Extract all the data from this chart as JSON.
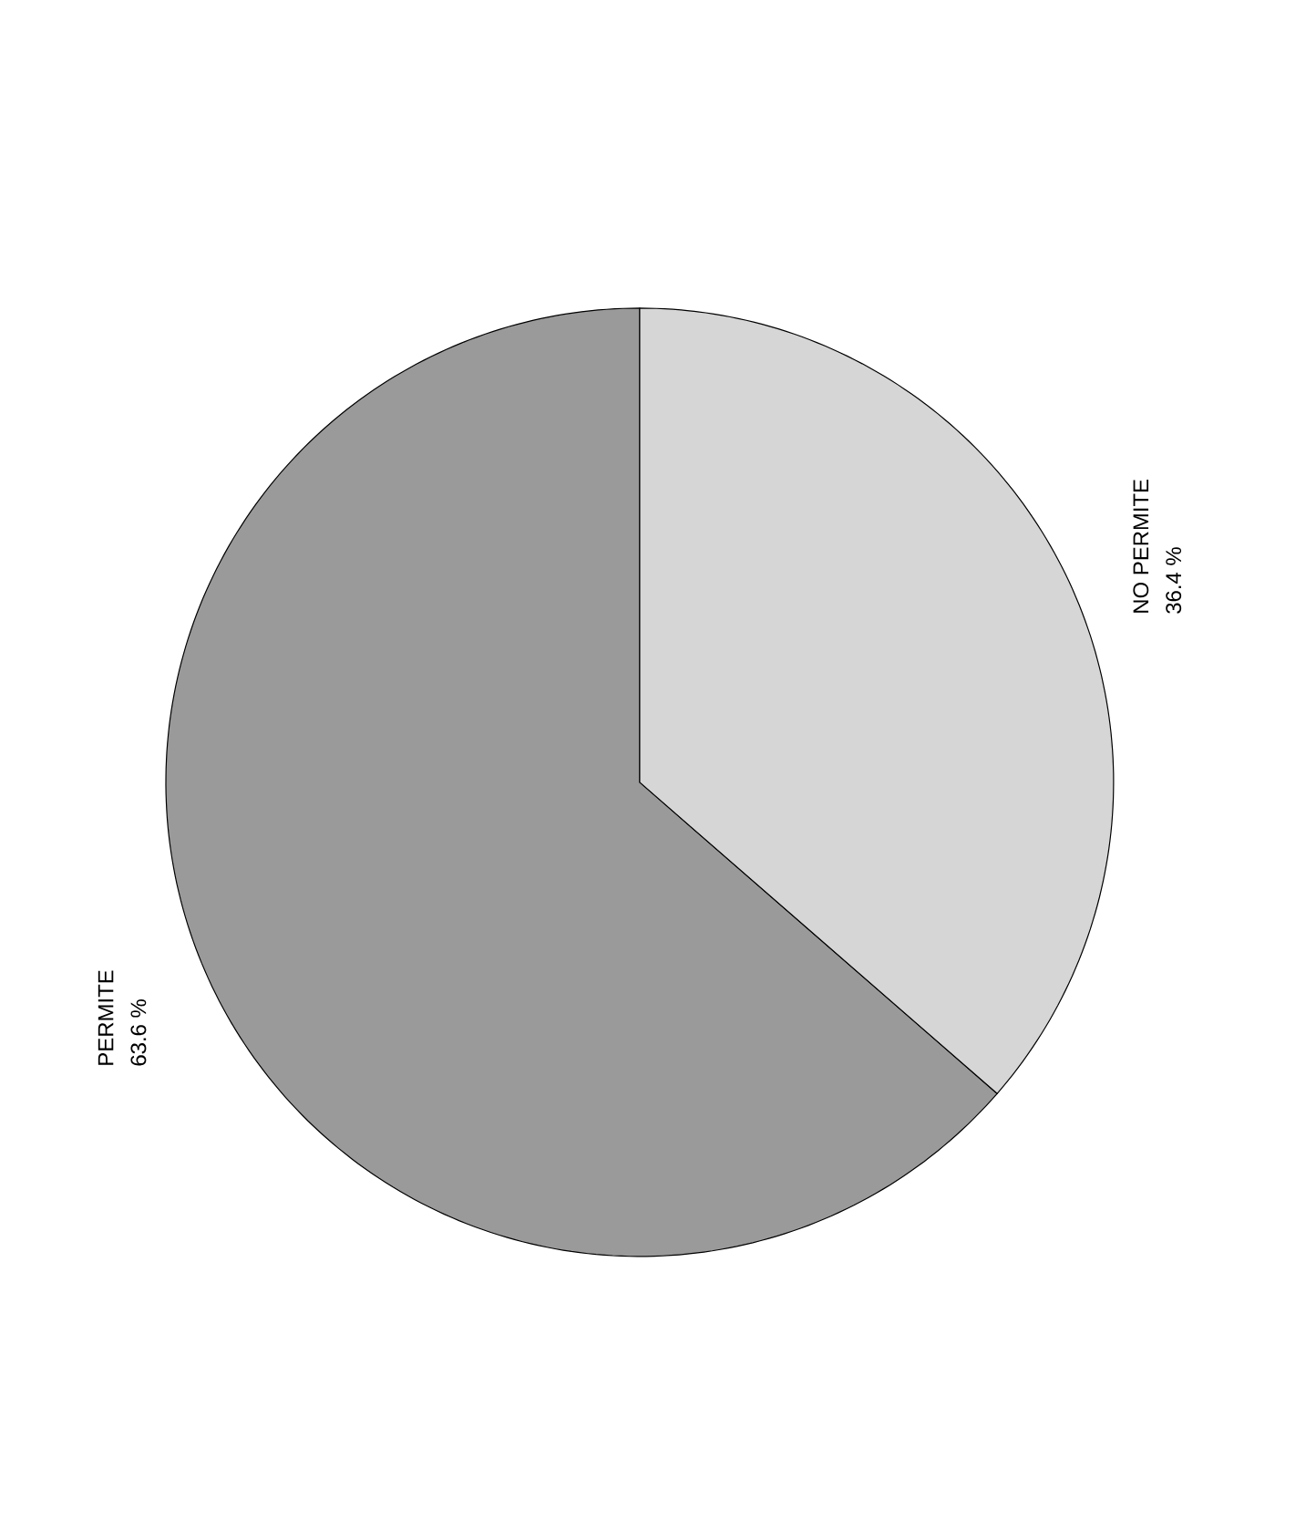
{
  "chart_data": {
    "type": "pie",
    "categories": [
      "PERMITE",
      "NO PERMITE"
    ],
    "values": [
      63.6,
      36.4
    ],
    "colors": [
      "#9a9a9a",
      "#d6d6d6"
    ],
    "value_labels": [
      "63.6 %",
      "36.4 %"
    ]
  }
}
